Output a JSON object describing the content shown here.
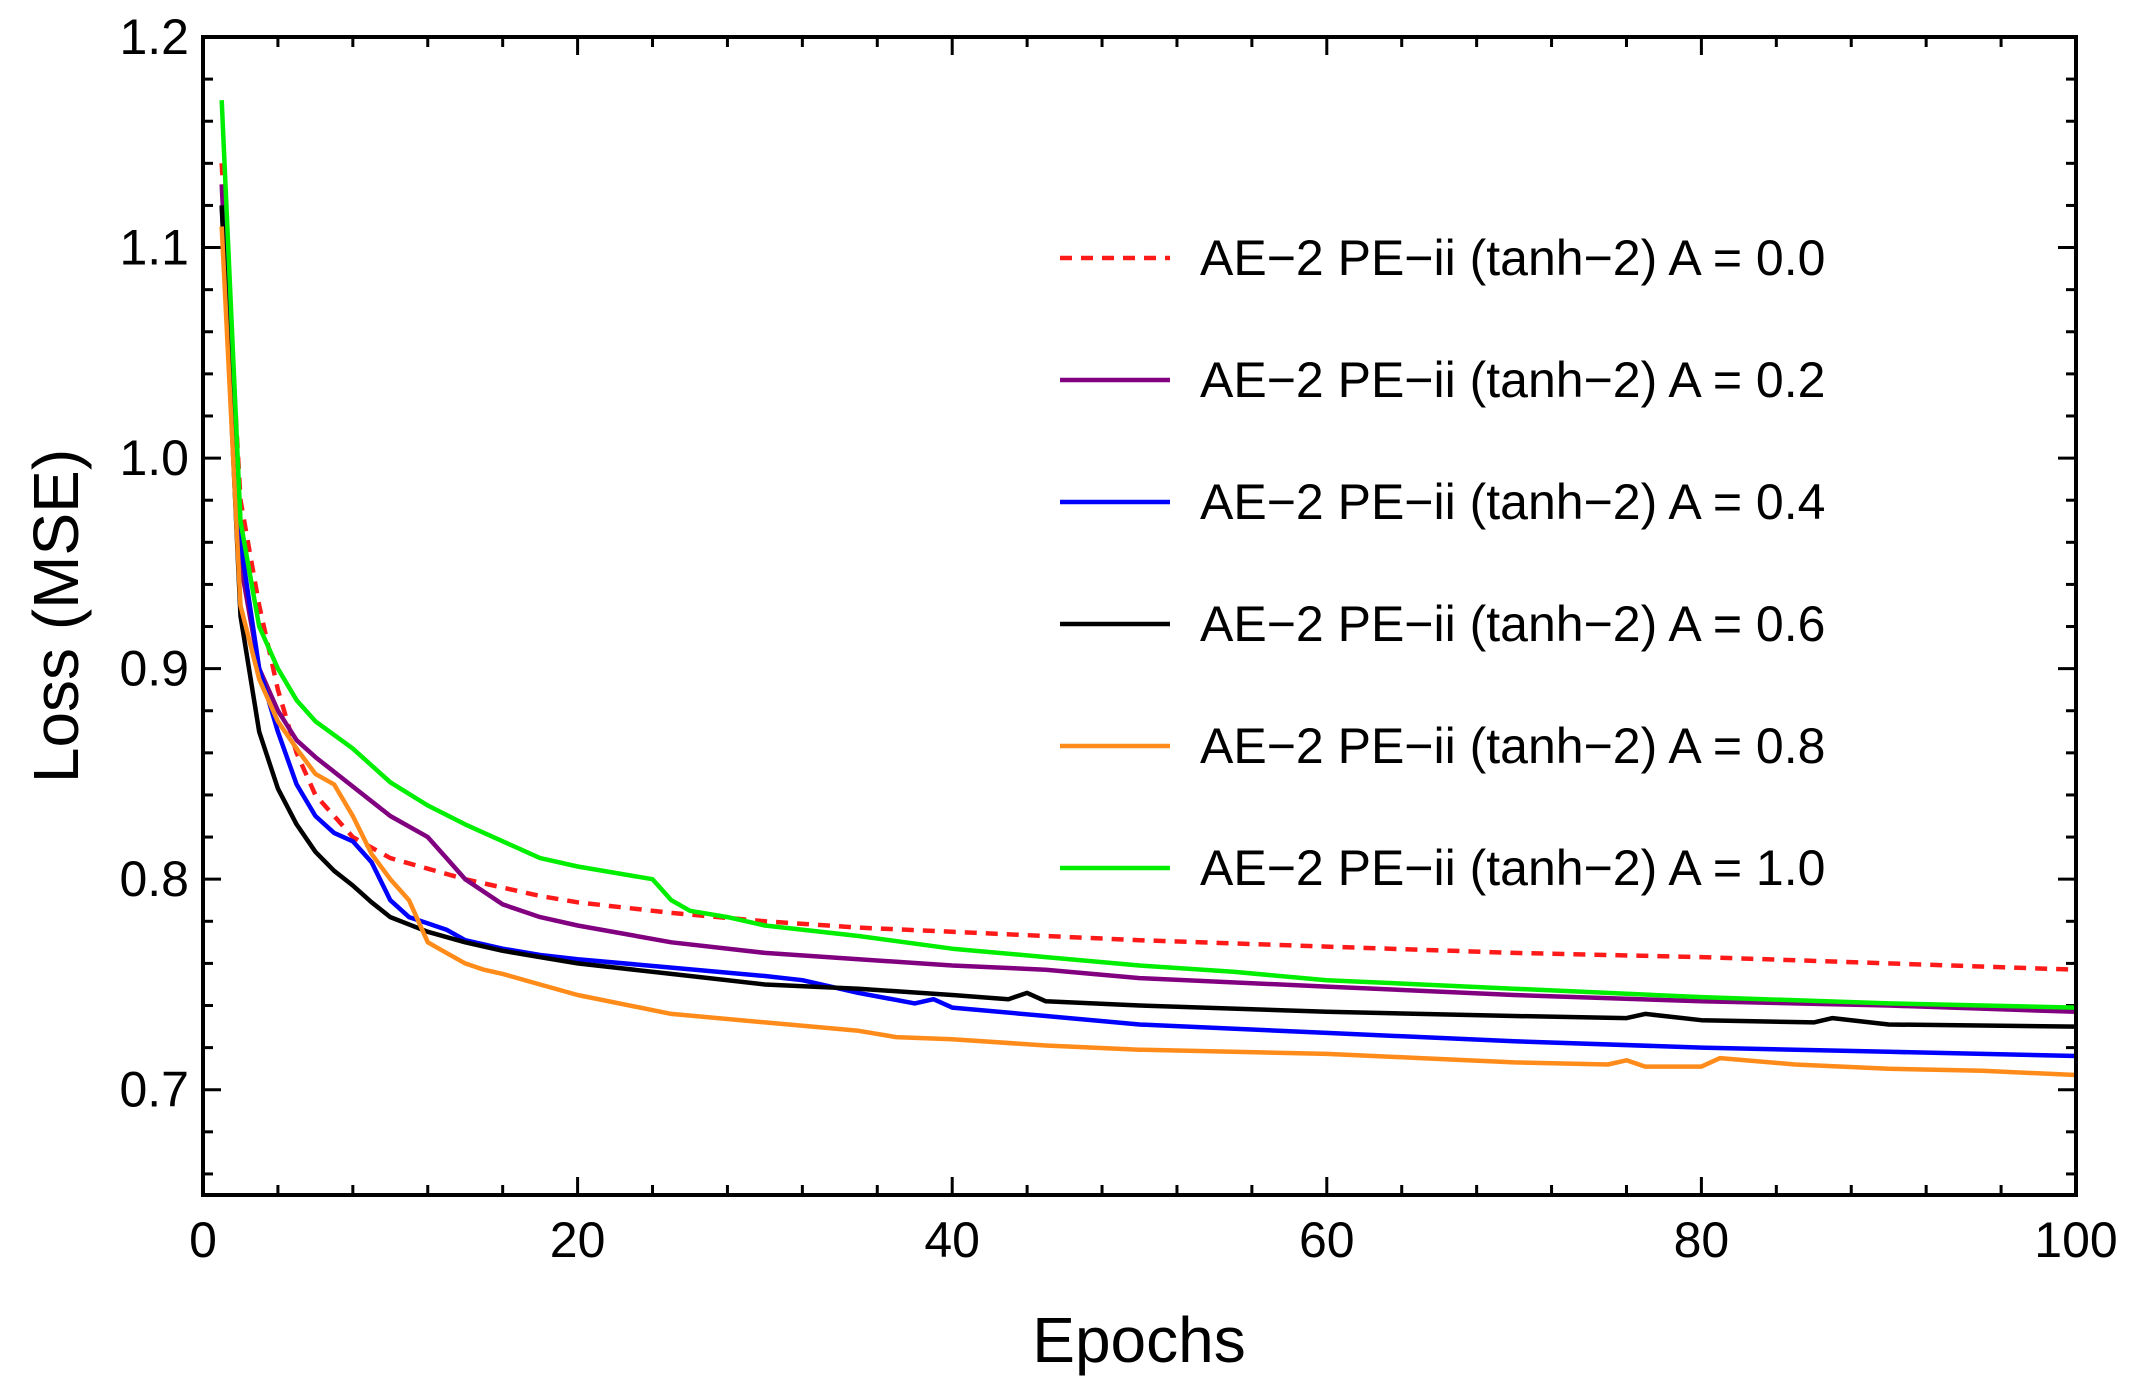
{
  "chart_data": {
    "type": "line",
    "title": "",
    "xlabel": "Epochs",
    "ylabel": "Loss (MSE)",
    "xlim": [
      0,
      100
    ],
    "ylim": [
      0.65,
      1.2
    ],
    "xticks": [
      0,
      20,
      40,
      60,
      80,
      100
    ],
    "xtick_labels": [
      "0",
      "20",
      "40",
      "60",
      "80",
      "100"
    ],
    "yticks": [
      0.7,
      0.8,
      0.9,
      1.0,
      1.1,
      1.2
    ],
    "ytick_labels": [
      "0.7",
      "0.8",
      "0.9",
      "1.0",
      "1.1",
      "1.2"
    ],
    "legend_position": "upper-right",
    "grid": false,
    "series": [
      {
        "name": "AE−2 PE−ii (tanh−2) A = 0.0",
        "color": "#ff1a1a",
        "dashed": true,
        "x": [
          1,
          2,
          3,
          4,
          5,
          6,
          7,
          8,
          9,
          10,
          12,
          14,
          16,
          18,
          20,
          25,
          30,
          35,
          40,
          45,
          50,
          60,
          70,
          80,
          90,
          100
        ],
        "y": [
          1.14,
          0.98,
          0.93,
          0.89,
          0.86,
          0.84,
          0.83,
          0.82,
          0.815,
          0.81,
          0.805,
          0.8,
          0.796,
          0.792,
          0.789,
          0.784,
          0.78,
          0.777,
          0.775,
          0.773,
          0.771,
          0.768,
          0.765,
          0.763,
          0.76,
          0.757
        ]
      },
      {
        "name": "AE−2 PE−ii (tanh−2) A = 0.2",
        "color": "#800080",
        "dashed": false,
        "x": [
          1,
          2,
          3,
          4,
          5,
          6,
          8,
          10,
          12,
          13,
          14,
          16,
          18,
          20,
          25,
          30,
          35,
          40,
          45,
          50,
          60,
          70,
          80,
          90,
          100
        ],
        "y": [
          1.13,
          0.95,
          0.9,
          0.88,
          0.866,
          0.858,
          0.844,
          0.83,
          0.82,
          0.81,
          0.8,
          0.788,
          0.782,
          0.778,
          0.77,
          0.765,
          0.762,
          0.759,
          0.757,
          0.753,
          0.749,
          0.745,
          0.742,
          0.74,
          0.737
        ]
      },
      {
        "name": "AE−2 PE−ii (tanh−2) A = 0.4",
        "color": "#0000ff",
        "dashed": false,
        "x": [
          1,
          2,
          3,
          4,
          5,
          6,
          7,
          8,
          9,
          10,
          11,
          12,
          13,
          14,
          16,
          18,
          20,
          25,
          30,
          32,
          35,
          38,
          39,
          40,
          45,
          50,
          60,
          70,
          80,
          90,
          100
        ],
        "y": [
          1.12,
          0.96,
          0.9,
          0.87,
          0.845,
          0.83,
          0.822,
          0.818,
          0.808,
          0.79,
          0.782,
          0.779,
          0.776,
          0.771,
          0.767,
          0.764,
          0.762,
          0.758,
          0.754,
          0.752,
          0.746,
          0.741,
          0.743,
          0.739,
          0.735,
          0.731,
          0.727,
          0.723,
          0.72,
          0.718,
          0.716
        ]
      },
      {
        "name": "AE−2 PE−ii (tanh−2) A = 0.6",
        "color": "#000000",
        "dashed": false,
        "x": [
          1,
          2,
          3,
          4,
          5,
          6,
          7,
          8,
          9,
          10,
          12,
          14,
          16,
          18,
          20,
          25,
          30,
          35,
          40,
          43,
          44,
          45,
          50,
          60,
          70,
          76,
          77,
          80,
          86,
          87,
          90,
          100
        ],
        "y": [
          1.12,
          0.925,
          0.87,
          0.843,
          0.826,
          0.813,
          0.804,
          0.797,
          0.789,
          0.782,
          0.775,
          0.77,
          0.766,
          0.763,
          0.76,
          0.755,
          0.75,
          0.748,
          0.745,
          0.743,
          0.746,
          0.742,
          0.74,
          0.737,
          0.735,
          0.734,
          0.736,
          0.733,
          0.732,
          0.734,
          0.731,
          0.73
        ]
      },
      {
        "name": "AE−2 PE−ii (tanh−2) A = 0.8",
        "color": "#ff8c1a",
        "dashed": false,
        "x": [
          1,
          2,
          3,
          4,
          5,
          6,
          7,
          8,
          9,
          10,
          11,
          12,
          13,
          14,
          15,
          16,
          18,
          20,
          25,
          30,
          35,
          37,
          40,
          45,
          50,
          55,
          60,
          65,
          70,
          75,
          76,
          77,
          80,
          81,
          85,
          90,
          95,
          100
        ],
        "y": [
          1.11,
          0.93,
          0.895,
          0.875,
          0.862,
          0.85,
          0.845,
          0.83,
          0.812,
          0.8,
          0.79,
          0.77,
          0.765,
          0.76,
          0.757,
          0.755,
          0.75,
          0.745,
          0.736,
          0.732,
          0.728,
          0.725,
          0.724,
          0.721,
          0.719,
          0.718,
          0.717,
          0.715,
          0.713,
          0.712,
          0.714,
          0.711,
          0.711,
          0.715,
          0.712,
          0.71,
          0.709,
          0.707
        ]
      },
      {
        "name": "AE−2 PE−ii (tanh−2) A = 1.0",
        "color": "#00ee00",
        "dashed": false,
        "x": [
          1,
          2,
          3,
          4,
          5,
          6,
          8,
          10,
          12,
          14,
          16,
          18,
          20,
          22,
          24,
          25,
          26,
          28,
          30,
          35,
          40,
          45,
          50,
          55,
          60,
          70,
          80,
          90,
          100
        ],
        "y": [
          1.17,
          0.97,
          0.92,
          0.9,
          0.885,
          0.875,
          0.862,
          0.846,
          0.835,
          0.826,
          0.818,
          0.81,
          0.806,
          0.803,
          0.8,
          0.79,
          0.785,
          0.782,
          0.778,
          0.773,
          0.767,
          0.763,
          0.759,
          0.756,
          0.752,
          0.748,
          0.744,
          0.741,
          0.739
        ]
      }
    ]
  }
}
